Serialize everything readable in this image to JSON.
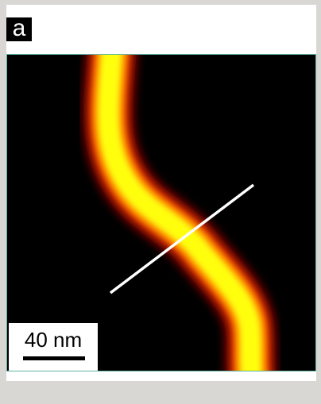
{
  "panel_label": "a",
  "scale_bar": {
    "label": "40 nm"
  }
}
